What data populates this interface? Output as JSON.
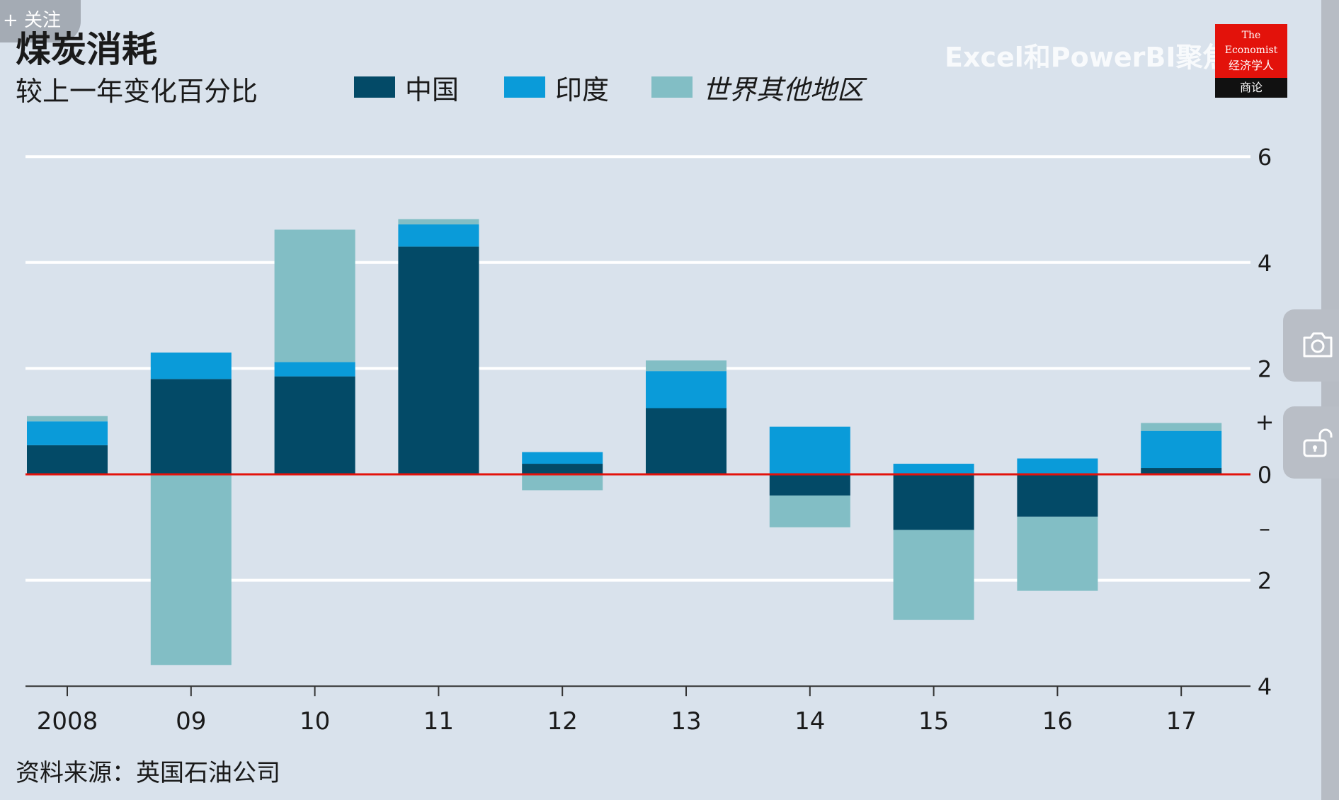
{
  "follow_badge": "+ 关注",
  "watermark": "Excel和PowerBI聚焦",
  "logo": {
    "line1": "The",
    "line2": "Economist",
    "line3": "经济学人",
    "line4": "商论"
  },
  "colors": {
    "china": "#034a67",
    "india": "#0a9bd9",
    "rest": "#82bec5",
    "zero_line": "#e3120b",
    "grid": "#ffffff",
    "background": "#d9e2ec"
  },
  "chart_data": {
    "type": "bar",
    "stacked": true,
    "title": "煤炭消耗",
    "subtitle": "较上一年变化百分比",
    "source": "资料来源：英国石油公司",
    "categories": [
      "2008",
      "09",
      "10",
      "11",
      "12",
      "13",
      "14",
      "15",
      "16",
      "17"
    ],
    "series": [
      {
        "name": "中国",
        "values": [
          0.55,
          1.8,
          1.85,
          4.3,
          0.2,
          1.25,
          -0.4,
          -1.05,
          -0.8,
          0.12
        ]
      },
      {
        "name": "印度",
        "values": [
          0.45,
          0.5,
          0.27,
          0.42,
          0.22,
          0.7,
          0.9,
          0.2,
          0.3,
          0.7
        ]
      },
      {
        "name": "世界其他地区",
        "values": [
          0.1,
          -3.6,
          2.5,
          0.1,
          -0.3,
          0.2,
          -0.6,
          -1.7,
          -1.4,
          0.15
        ]
      }
    ],
    "ylim": [
      -4,
      6
    ],
    "y_ticks": [
      {
        "value": 6,
        "label": "6"
      },
      {
        "value": 4,
        "label": "4"
      },
      {
        "value": 2,
        "label": "2"
      },
      {
        "value": 1,
        "label": "+"
      },
      {
        "value": 0,
        "label": "0"
      },
      {
        "value": -1,
        "label": "–"
      },
      {
        "value": -2,
        "label": "2"
      },
      {
        "value": -4,
        "label": "4"
      }
    ],
    "gridlines": [
      6,
      4,
      2,
      -2
    ],
    "legend_position": "top"
  }
}
